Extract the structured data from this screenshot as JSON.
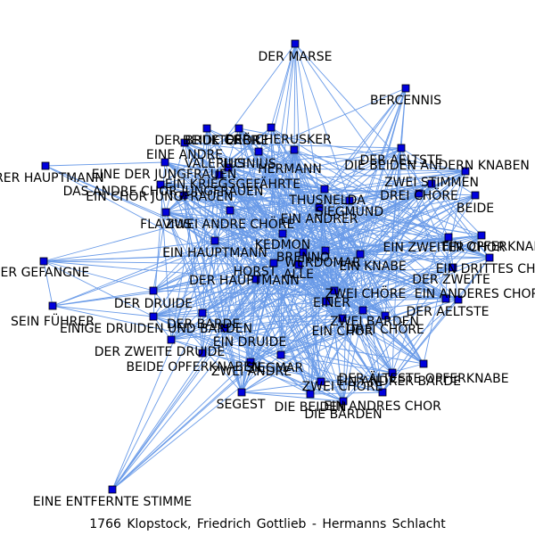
{
  "caption": "1766  Klopstock,  Friedrich  Gottlieb  -  Hermanns  Schlacht",
  "colors": {
    "edge": "#6a9be8",
    "node_fill": "#0000dd",
    "node_stroke": "#000000",
    "label": "#000000"
  },
  "graph": {
    "type": "network",
    "nodes": [
      "DER MARSE",
      "BERCENNIS",
      "DER AELTSTE",
      "DIE BEIDEN ANDERN KNABEN",
      "ZWEI STIMMEN",
      "DREI CHÖRE",
      "BEIDE",
      "DER BRUKTERER",
      "BEIDE CHÖRE",
      "DER CHERUSKER",
      "EINE ANDRE",
      "VALERIUS",
      "LICINIUS",
      "HERMANN",
      "EINE DER JUNGFRAUEN",
      "ANDRER HAUPTMANN",
      "DAS ANDRE CHOR JUNGFRAUEN",
      "EIN KRIEGSGEFÄHRTE",
      "EIN CHOR JUNGFRAUEN",
      "THUSNELDA",
      "SIEGMUND",
      "EIN ANDRER",
      "FLAVIUS",
      "ZWEI ANDRE CHÖRE",
      "EIN ZWEITER CHOR",
      "EIN OPFERKNABE",
      "KEDMON",
      "EIN HAUPTMANN",
      "BRENNO",
      "DER GEFANGNE",
      "WERDOMAR",
      "EIN KNABE",
      "EIN DRITTES CHOR",
      "HORST",
      "ALLE",
      "DER ZWEITE",
      "DER HAUPTMANN",
      "ZWEI CHÖRE",
      "EIN ANDERES CHOR",
      "DER DRUIDE",
      "EINER",
      "DER AELTSTE",
      "SEIN FÜHRER",
      "DER BARDE",
      "ZWEI BARDEN",
      "EINIGE DRUIDEN UND BARDEN",
      "EIN CHOR",
      "DREI CHÖRE",
      "EIN DRUIDE",
      "DER ZWEITE DRUIDE",
      "BEIDE OPFERKNABEN",
      "SIEGMAR",
      "ZWEI ANDRE",
      "DER ÄLTESTE OPFERKNABE",
      "EIN ANDRER BARDE",
      "ZWEI CHÖRE",
      "SEGEST",
      "DIE BEIDEN",
      "EIN ANDRES CHOR",
      "DIE BARDEN",
      "EINE ENTFERNTE STIMME"
    ]
  }
}
